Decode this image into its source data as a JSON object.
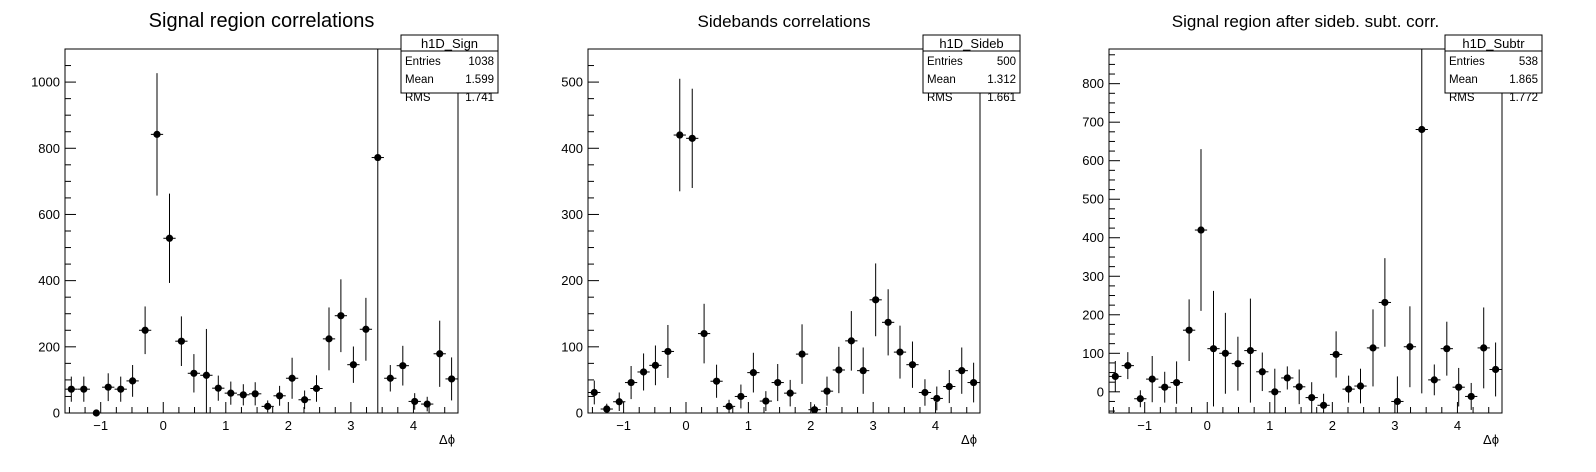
{
  "chart_data": [
    {
      "type": "scatter",
      "title": "Signal region correlations",
      "xlabel": "Δϕ",
      "ylabel": "",
      "xlim": [
        -1.5708,
        4.7124
      ],
      "ylim": [
        0,
        1100
      ],
      "xticks": [
        -1,
        0,
        1,
        2,
        3,
        4
      ],
      "yticks": [
        0,
        200,
        400,
        600,
        800,
        1000
      ],
      "minor_per_major": 4,
      "stats_box": {
        "name": "h1D_Sign",
        "rows": [
          {
            "label": "Entries",
            "value": "1038"
          },
          {
            "label": "Mean",
            "value": "1.599"
          },
          {
            "label": "RMS",
            "value": "1.741"
          }
        ]
      },
      "overflow_bins": [
        {
          "x": 3.4,
          "y": 772
        }
      ],
      "series": [
        {
          "x": [
            -1.47,
            -1.27,
            -1.07,
            -0.88,
            -0.68,
            -0.49,
            -0.29,
            -0.1,
            0.1,
            0.29,
            0.49,
            0.69,
            0.88,
            1.08,
            1.28,
            1.47,
            1.67,
            1.86,
            2.06,
            2.26,
            2.45,
            2.65,
            2.84,
            3.04,
            3.24,
            3.43,
            3.63,
            3.83,
            4.02,
            4.22,
            4.42,
            4.61
          ],
          "y": [
            72,
            72,
            0,
            78,
            72,
            97,
            250,
            842,
            528,
            217,
            120,
            114,
            75,
            60,
            55,
            58,
            20,
            52,
            105,
            40,
            74,
            224,
            294,
            146,
            253,
            772,
            105,
            143,
            35,
            27,
            179,
            103
          ],
          "yerr": [
            38,
            38,
            0,
            42,
            38,
            48,
            72,
            185,
            135,
            75,
            58,
            140,
            38,
            35,
            32,
            35,
            18,
            30,
            62,
            28,
            40,
            95,
            110,
            55,
            95,
            780,
            40,
            60,
            25,
            22,
            100,
            65
          ]
        }
      ]
    },
    {
      "type": "scatter",
      "title": "Sidebands correlations",
      "xlabel": "Δϕ",
      "ylabel": "",
      "xlim": [
        -1.5708,
        4.7124
      ],
      "ylim": [
        0,
        550
      ],
      "xticks": [
        -1,
        0,
        1,
        2,
        3,
        4
      ],
      "yticks": [
        0,
        100,
        200,
        300,
        400,
        500
      ],
      "minor_per_major": 4,
      "stats_box": {
        "name": "h1D_Sideb",
        "rows": [
          {
            "label": "Entries",
            "value": "500"
          },
          {
            "label": "Mean",
            "value": "1.312"
          },
          {
            "label": "RMS",
            "value": "1.661"
          }
        ]
      },
      "overflow_bins": [],
      "series": [
        {
          "x": [
            -1.47,
            -1.27,
            -1.07,
            -0.88,
            -0.68,
            -0.49,
            -0.29,
            -0.1,
            0.1,
            0.29,
            0.49,
            0.69,
            0.88,
            1.08,
            1.28,
            1.47,
            1.67,
            1.86,
            2.06,
            2.26,
            2.45,
            2.65,
            2.84,
            3.04,
            3.24,
            3.43,
            3.63,
            3.83,
            4.02,
            4.22,
            4.42,
            4.61
          ],
          "y": [
            31,
            6,
            17,
            46,
            62,
            72,
            93,
            420,
            415,
            120,
            48,
            10,
            25,
            61,
            18,
            46,
            30,
            89,
            5,
            33,
            65,
            109,
            64,
            171,
            137,
            92,
            73,
            31,
            22,
            40,
            64,
            46
          ],
          "yerr": [
            18,
            8,
            14,
            25,
            28,
            30,
            40,
            85,
            75,
            45,
            25,
            10,
            18,
            30,
            15,
            28,
            20,
            45,
            8,
            22,
            35,
            45,
            35,
            55,
            50,
            40,
            35,
            20,
            18,
            25,
            35,
            30
          ]
        }
      ]
    },
    {
      "type": "scatter",
      "title": "Signal region after sideb. subt. corr.",
      "xlabel": "Δϕ",
      "ylabel": "",
      "xlim": [
        -1.5708,
        4.7124
      ],
      "ylim": [
        -55,
        890
      ],
      "xticks": [
        -1,
        0,
        1,
        2,
        3,
        4
      ],
      "yticks": [
        0,
        100,
        200,
        300,
        400,
        500,
        600,
        700,
        800
      ],
      "minor_per_major": 4,
      "stats_box": {
        "name": "h1D_Subtr",
        "rows": [
          {
            "label": "Entries",
            "value": "538"
          },
          {
            "label": "Mean",
            "value": "1.865"
          },
          {
            "label": "RMS",
            "value": "1.772"
          }
        ]
      },
      "overflow_bins": [
        {
          "x": 3.4,
          "y": 681
        }
      ],
      "series": [
        {
          "x": [
            -1.47,
            -1.27,
            -1.07,
            -0.88,
            -0.68,
            -0.49,
            -0.29,
            -0.1,
            0.1,
            0.29,
            0.49,
            0.69,
            0.88,
            1.08,
            1.28,
            1.47,
            1.67,
            1.86,
            2.06,
            2.26,
            2.45,
            2.65,
            2.84,
            3.04,
            3.24,
            3.43,
            3.63,
            3.83,
            4.02,
            4.22,
            4.42,
            4.61
          ],
          "y": [
            40,
            68,
            -18,
            33,
            12,
            24,
            160,
            420,
            112,
            100,
            73,
            107,
            52,
            0,
            36,
            13,
            -15,
            -35,
            97,
            7,
            15,
            114,
            232,
            -25,
            117,
            681,
            31,
            112,
            12,
            -12,
            114,
            58
          ],
          "yerr": [
            40,
            35,
            22,
            60,
            40,
            55,
            80,
            210,
            150,
            105,
            70,
            135,
            50,
            60,
            30,
            45,
            40,
            30,
            60,
            35,
            45,
            100,
            115,
            65,
            105,
            685,
            40,
            70,
            50,
            35,
            105,
            70
          ]
        }
      ]
    }
  ]
}
